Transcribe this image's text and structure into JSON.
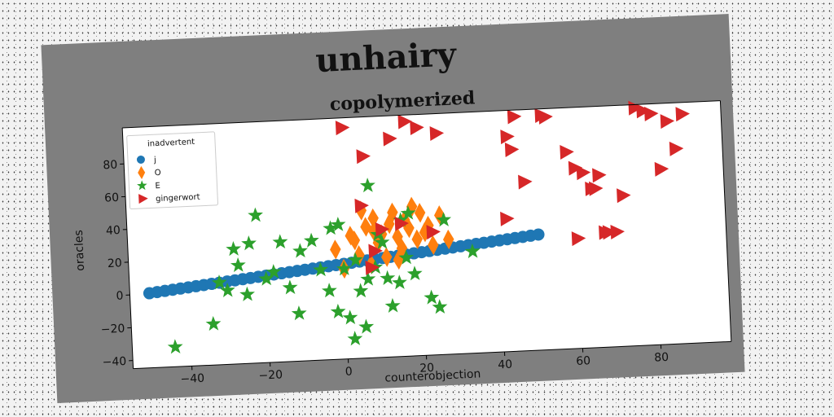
{
  "figure_title": "unhairy",
  "chart_data": {
    "type": "scatter",
    "title": "copolymerized",
    "xlabel": "counterobjection",
    "ylabel": "oracles",
    "xlim": [
      -55,
      98
    ],
    "ylim": [
      -45,
      102
    ],
    "xticks": [
      -40,
      -20,
      0,
      20,
      40,
      60,
      80
    ],
    "yticks": [
      -40,
      -20,
      0,
      20,
      40,
      60,
      80
    ],
    "grid": false,
    "legend": {
      "title": "inadvertent",
      "placement": "upper-left"
    },
    "series": [
      {
        "name": "j",
        "marker": "circle",
        "color": "#1f77b4",
        "x": [
          -50,
          -48,
          -46,
          -44,
          -42,
          -40,
          -38,
          -36,
          -34,
          -32,
          -30,
          -28,
          -26,
          -24,
          -22,
          -20,
          -18,
          -16,
          -14,
          -12,
          -10,
          -8,
          -6,
          -4,
          -2,
          0,
          2,
          4,
          6,
          8,
          10,
          12,
          14,
          16,
          18,
          20,
          22,
          24,
          26,
          28,
          30,
          32,
          34,
          36,
          38,
          40,
          42,
          44,
          46,
          48,
          50
        ],
        "y": [
          0.5,
          1,
          1.5,
          2,
          2.5,
          3,
          3.5,
          4,
          4.5,
          5,
          5.5,
          6,
          6.5,
          7,
          7.5,
          8,
          8.5,
          9,
          9.5,
          10,
          10.5,
          11,
          11.5,
          12,
          12.5,
          13,
          13.5,
          14,
          14.5,
          15,
          15.5,
          16,
          16.5,
          17,
          17.5,
          18,
          18.5,
          19,
          19.5,
          20,
          20.5,
          21,
          21.5,
          22,
          22.5,
          23,
          23.5,
          24,
          24.5,
          25,
          25.5
        ]
      },
      {
        "name": "O",
        "marker": "diamond",
        "color": "#ff7f0e",
        "x": [
          -2,
          0,
          2,
          4,
          5,
          6,
          7,
          8,
          9,
          10,
          11,
          12,
          13,
          14,
          15,
          16,
          17,
          18,
          19,
          20,
          21,
          22,
          23,
          25,
          27,
          14,
          8,
          3
        ],
        "y": [
          22,
          10,
          30,
          18,
          45,
          35,
          12,
          40,
          25,
          30,
          16,
          36,
          43,
          28,
          21,
          38,
          33,
          46,
          26,
          42,
          30,
          34,
          22,
          40,
          25,
          14,
          32,
          27
        ]
      },
      {
        "name": "E",
        "marker": "star",
        "color": "#2ca02c",
        "x": [
          -44,
          -34,
          -32,
          -30,
          -28,
          -27,
          -25,
          -24,
          -22,
          -20,
          -18,
          -16,
          -14,
          -12,
          -11,
          -8,
          -6,
          -4,
          -3,
          -2,
          -1,
          0,
          1,
          2,
          3,
          4,
          5,
          6,
          7,
          8,
          9,
          10,
          11,
          12,
          14,
          15,
          16,
          17,
          18,
          22,
          24,
          26,
          33
        ],
        "y": [
          -33,
          -20,
          5,
          0,
          25,
          15,
          -3,
          28,
          45,
          6,
          10,
          28,
          0,
          -16,
          22,
          28,
          10,
          -3,
          35,
          -16,
          37,
          10,
          -20,
          -33,
          15,
          -4,
          -26,
          3,
          60,
          10,
          30,
          25,
          3,
          -14,
          0,
          38,
          15,
          42,
          5,
          -10,
          -16,
          37,
          17
        ]
      },
      {
        "name": "gingerwort",
        "marker": "triangle-right",
        "color": "#d62728",
        "x": [
          1,
          5,
          6,
          7,
          8,
          10,
          13,
          17,
          20,
          23,
          25,
          42,
          43,
          44,
          45,
          47,
          52,
          53,
          58,
          60,
          62,
          64,
          65,
          66,
          67,
          68,
          70,
          72,
          76,
          78,
          80,
          82,
          84,
          86,
          88,
          60,
          15
        ],
        "y": [
          96,
          48,
          78,
          10,
          20,
          33,
          88,
          98,
          94,
          30,
          90,
          36,
          86,
          78,
          98,
          58,
          98,
          97,
          75,
          65,
          62,
          52,
          52,
          60,
          25,
          25,
          25,
          47,
          100,
          98,
          96,
          62,
          91,
          74,
          95,
          22,
          36
        ]
      }
    ]
  }
}
